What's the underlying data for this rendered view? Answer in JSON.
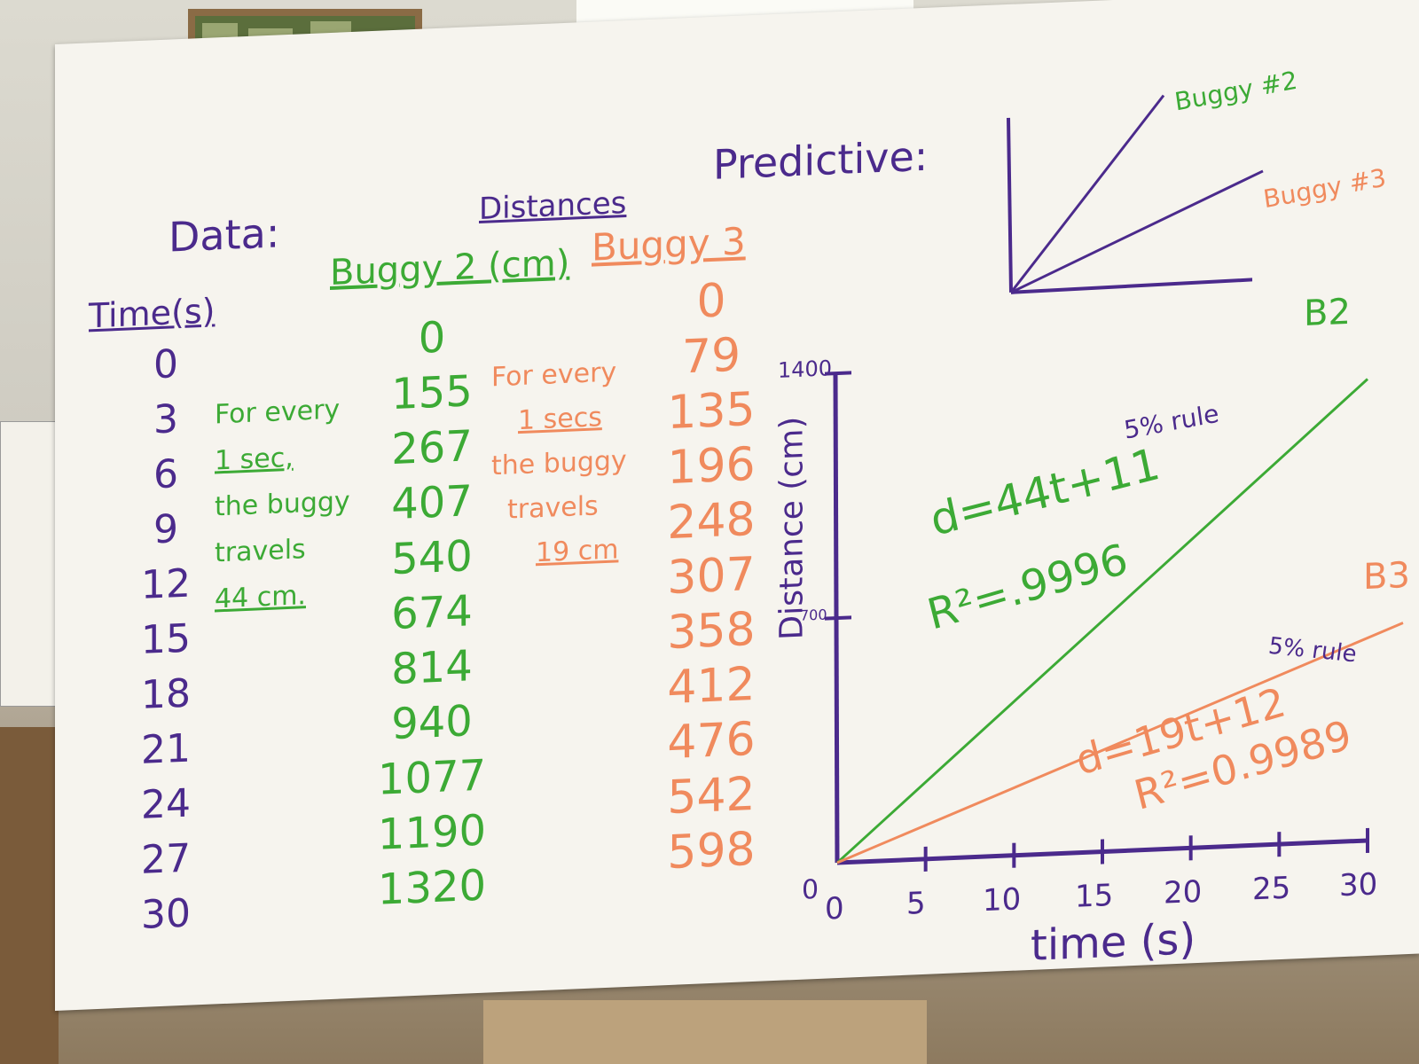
{
  "board": {
    "data_heading": "Data:",
    "distances_heading": "Distances",
    "time_header": "Time(s)",
    "buggy2_header": "Buggy 2 (cm)",
    "buggy3_header": "Buggy 3",
    "time_values": [
      "0",
      "3",
      "6",
      "9",
      "12",
      "15",
      "18",
      "21",
      "24",
      "27",
      "30"
    ],
    "buggy2_values": [
      "0",
      "155",
      "267",
      "407",
      "540",
      "674",
      "814",
      "940",
      "1077",
      "1190",
      "1320"
    ],
    "buggy3_values": [
      "0",
      "79",
      "135",
      "196",
      "248",
      "307",
      "358",
      "412",
      "476",
      "542",
      "598"
    ],
    "note_green": [
      "For every",
      "1 sec,",
      "the buggy",
      "travels",
      "44 cm."
    ],
    "note_orange": [
      "For every",
      "1 secs",
      "the buggy",
      "travels",
      "19 cm"
    ],
    "predictive_label": "Predictive:",
    "predictive_buggy2": "Buggy #2",
    "predictive_buggy3": "Buggy #3"
  },
  "graph": {
    "y_label": "Distance (cm)",
    "x_label": "time (s)",
    "y_ticks": [
      "1400",
      "700"
    ],
    "x_ticks": [
      "5",
      "10",
      "15",
      "20",
      "25",
      "30"
    ],
    "x_origin": "0",
    "y_origin": "0",
    "b2_label": "B2",
    "b3_label": "B3",
    "b2_equation": "d=44t+11",
    "b2_r2": "R²=.9996",
    "b2_rule": "5% rule",
    "b3_equation": "d=19t+12",
    "b3_r2": "R²=0.9989",
    "b3_rule": "5% rule"
  },
  "colors": {
    "purple": "#4b2a8c",
    "green": "#3caa35",
    "orange": "#f08a5d"
  },
  "chart_data": {
    "type": "line",
    "x": [
      0,
      3,
      6,
      9,
      12,
      15,
      18,
      21,
      24,
      27,
      30
    ],
    "series": [
      {
        "name": "B2",
        "values": [
          0,
          155,
          267,
          407,
          540,
          674,
          814,
          940,
          1077,
          1190,
          1320
        ]
      },
      {
        "name": "B3",
        "values": [
          0,
          79,
          135,
          196,
          248,
          307,
          358,
          412,
          476,
          542,
          598
        ]
      }
    ],
    "xlabel": "time (s)",
    "ylabel": "Distance (cm)",
    "xlim": [
      0,
      30
    ],
    "ylim": [
      0,
      1400
    ]
  }
}
